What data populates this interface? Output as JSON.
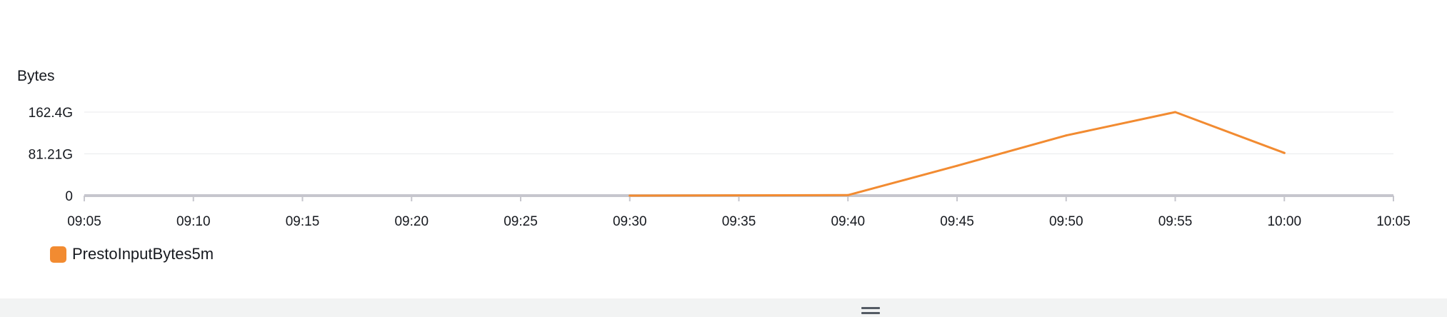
{
  "chart_data": {
    "type": "line",
    "ylabel": "Bytes",
    "y_ticks": [
      {
        "value": 0,
        "label": "0"
      },
      {
        "value": 81.21,
        "label": "81.21G"
      },
      {
        "value": 162.4,
        "label": "162.4G"
      }
    ],
    "ylim": [
      0,
      162.4
    ],
    "x_ticks": [
      "09:05",
      "09:10",
      "09:15",
      "09:20",
      "09:25",
      "09:30",
      "09:35",
      "09:40",
      "09:45",
      "09:50",
      "09:55",
      "10:00",
      "10:05"
    ],
    "xlim": [
      "09:05",
      "10:05"
    ],
    "grid": true,
    "legend_position": "bottom-left",
    "series": [
      {
        "name": "PrestoInputBytes5m",
        "color": "#f28b31",
        "x": [
          "09:30",
          "09:35",
          "09:40",
          "09:45",
          "09:50",
          "09:55",
          "10:00"
        ],
        "values": [
          0,
          0.5,
          1,
          58,
          117,
          162.4,
          83
        ]
      }
    ]
  }
}
